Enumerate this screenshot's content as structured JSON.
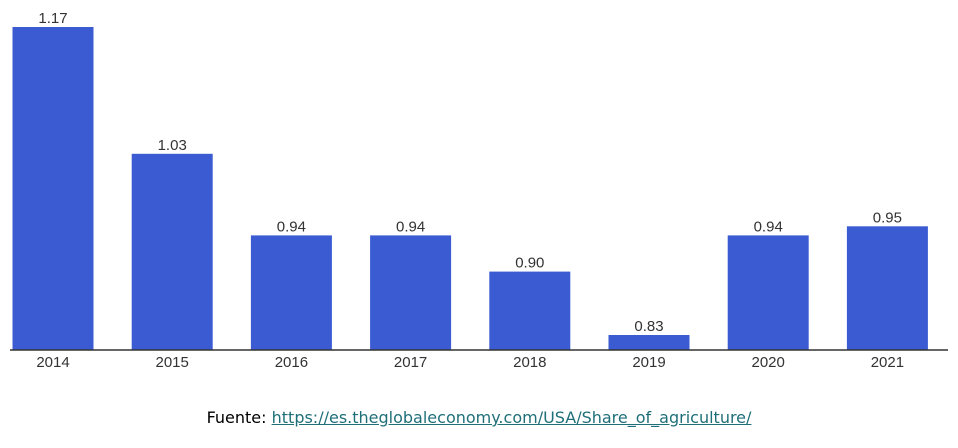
{
  "chart_data": {
    "type": "bar",
    "categories": [
      "2014",
      "2015",
      "2016",
      "2017",
      "2018",
      "2019",
      "2020",
      "2021"
    ],
    "values": [
      1.17,
      1.03,
      0.94,
      0.94,
      0.9,
      0.83,
      0.94,
      0.95
    ],
    "value_labels": [
      "1.17",
      "1.03",
      "0.94",
      "0.94",
      "0.90",
      "0.83",
      "0.94",
      "0.95"
    ],
    "title": "",
    "xlabel": "",
    "ylabel": "",
    "bar_color": "#3a5bd1",
    "grid": false,
    "legend": "none"
  },
  "source": {
    "label": "Fuente:",
    "link_text": "https://es.theglobaleconomy.com/USA/Share_of_agriculture/"
  }
}
